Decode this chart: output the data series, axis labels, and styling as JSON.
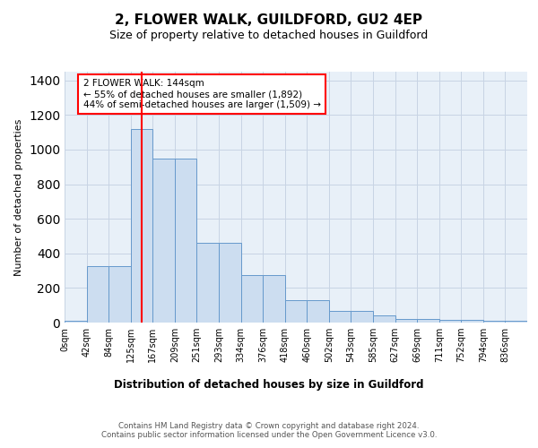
{
  "title": "2, FLOWER WALK, GUILDFORD, GU2 4EP",
  "subtitle": "Size of property relative to detached houses in Guildford",
  "xlabel": "Distribution of detached houses by size in Guildford",
  "ylabel": "Number of detached properties",
  "categories": [
    "0sqm",
    "42sqm",
    "84sqm",
    "125sqm",
    "167sqm",
    "209sqm",
    "251sqm",
    "293sqm",
    "334sqm",
    "376sqm",
    "418sqm",
    "460sqm",
    "502sqm",
    "543sqm",
    "585sqm",
    "627sqm",
    "669sqm",
    "711sqm",
    "752sqm",
    "794sqm",
    "836sqm"
  ],
  "values": [
    10,
    325,
    325,
    1120,
    950,
    950,
    460,
    460,
    275,
    275,
    130,
    130,
    65,
    65,
    40,
    20,
    20,
    18,
    18,
    10,
    10
  ],
  "bar_color": "#ccddf0",
  "bar_edge_color": "#6699cc",
  "grid_color": "#c8d4e4",
  "bg_color": "#e8f0f8",
  "red_line_x": 3.5,
  "annotation_text": "2 FLOWER WALK: 144sqm\n← 55% of detached houses are smaller (1,892)\n44% of semi-detached houses are larger (1,509) →",
  "annotation_box_color": "white",
  "annotation_box_edge_color": "red",
  "footer": "Contains HM Land Registry data © Crown copyright and database right 2024.\nContains public sector information licensed under the Open Government Licence v3.0.",
  "ylim": [
    0,
    1450
  ],
  "title_fontsize": 11,
  "subtitle_fontsize": 9
}
